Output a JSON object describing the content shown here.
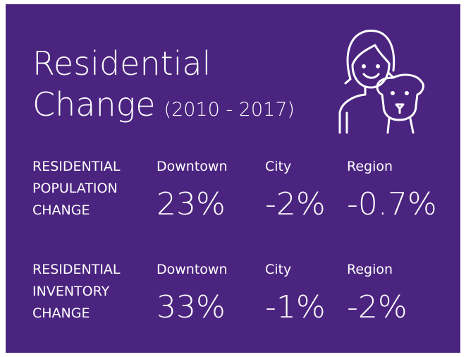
{
  "header": {
    "title_line1": "Residential",
    "title_line2": "Change",
    "subtitle": "(2010 - 2017)"
  },
  "rows": [
    {
      "label": [
        "RESIDENTIAL",
        "POPULATION",
        "CHANGE"
      ],
      "columns": [
        {
          "name": "Downtown",
          "value": "23%"
        },
        {
          "name": "City",
          "value": "-2%"
        },
        {
          "name": "Region",
          "value": "-0.7%"
        }
      ]
    },
    {
      "label": [
        "RESIDENTIAL",
        "INVENTORY",
        "CHANGE"
      ],
      "columns": [
        {
          "name": "Downtown",
          "value": "33%"
        },
        {
          "name": "City",
          "value": "-1%"
        },
        {
          "name": "Region",
          "value": "-2%"
        }
      ]
    }
  ]
}
